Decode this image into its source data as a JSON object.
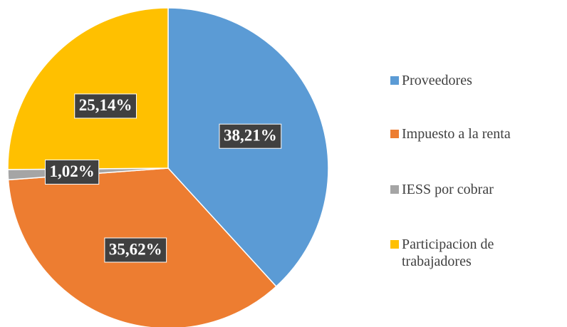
{
  "chart_data": {
    "type": "pie",
    "categories": [
      "Proveedores",
      "Impuesto a la renta",
      "IESS por cobrar",
      "Participacion de trabajadores"
    ],
    "values": [
      38.21,
      35.62,
      1.02,
      25.14
    ],
    "value_labels": [
      "38,21%",
      "35,62%",
      "1,02%",
      "25,14%"
    ],
    "colors": [
      "#5b9bd5",
      "#ed7d31",
      "#a5a5a5",
      "#ffc000"
    ],
    "legend": "right"
  }
}
